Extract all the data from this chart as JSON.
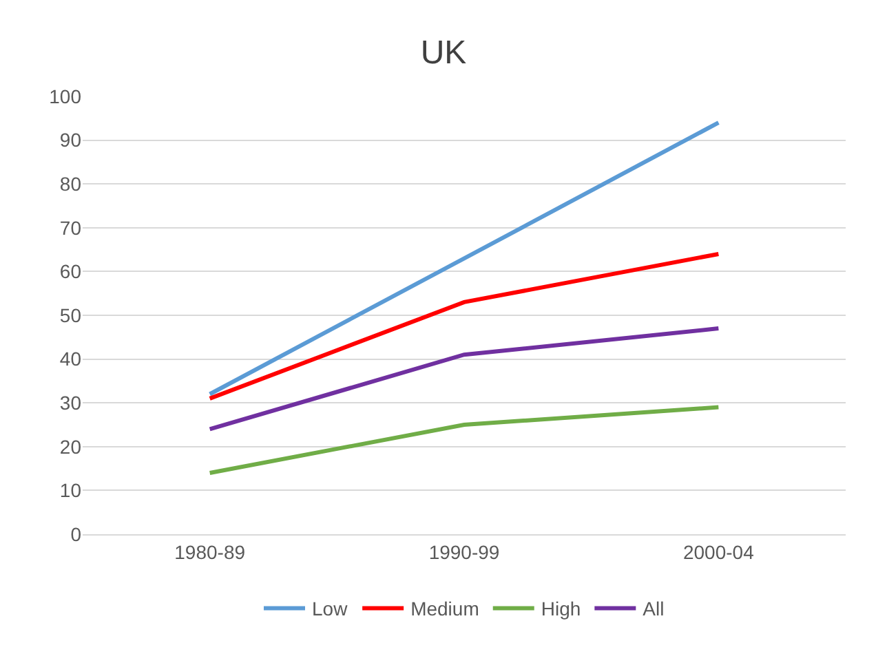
{
  "chart_data": {
    "type": "line",
    "title": "UK",
    "categories": [
      "1980-89",
      "1990-99",
      "2000-04"
    ],
    "series": [
      {
        "name": "Low",
        "color": "#5b9bd5",
        "values": [
          32,
          63,
          94
        ]
      },
      {
        "name": "Medium",
        "color": "#ff0000",
        "values": [
          31,
          53,
          64
        ]
      },
      {
        "name": "High",
        "color": "#70ad47",
        "values": [
          14,
          25,
          29
        ]
      },
      {
        "name": "All",
        "color": "#7030a0",
        "values": [
          24,
          41,
          47
        ]
      }
    ],
    "ylim": [
      0,
      100
    ],
    "yticks": [
      0,
      10,
      20,
      30,
      40,
      50,
      60,
      70,
      80,
      90,
      100
    ],
    "grid": "y",
    "legend": "bottom",
    "marker": "none",
    "line_style": "solid"
  }
}
